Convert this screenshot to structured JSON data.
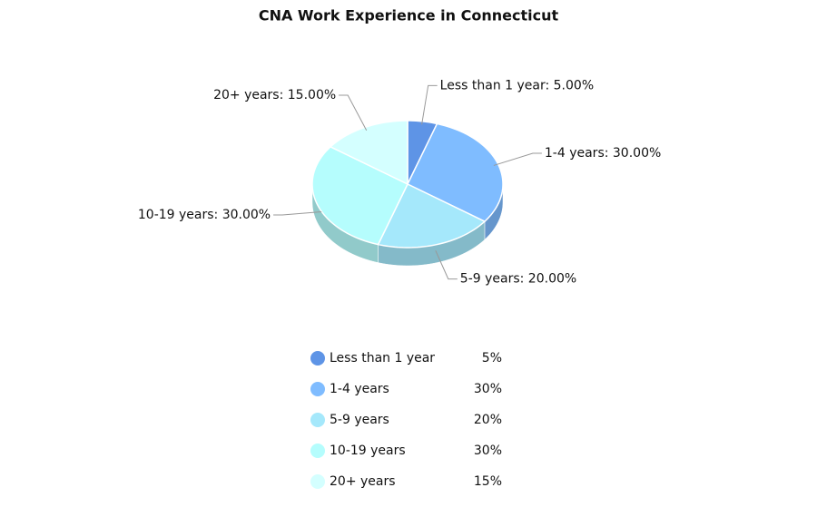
{
  "chart_data": {
    "type": "pie",
    "title": "CNA Work Experience in Connecticut",
    "categories": [
      "Less than 1 year",
      "1-4 years",
      "5-9 years",
      "10-19 years",
      "20+ years"
    ],
    "values": [
      5,
      30,
      20,
      30,
      15
    ],
    "value_labels": [
      "Less than 1 year: 5.00%",
      "1-4 years: 30.00%",
      "5-9 years: 20.00%",
      "10-19 years: 30.00%",
      "20+ years: 15.00%"
    ],
    "legend_value_labels": [
      "5%",
      "30%",
      "20%",
      "30%",
      "15%"
    ],
    "colors": [
      "#5e94e6",
      "#7fbcff",
      "#a5e8fb",
      "#b5fdfd",
      "#d4ffff"
    ]
  }
}
